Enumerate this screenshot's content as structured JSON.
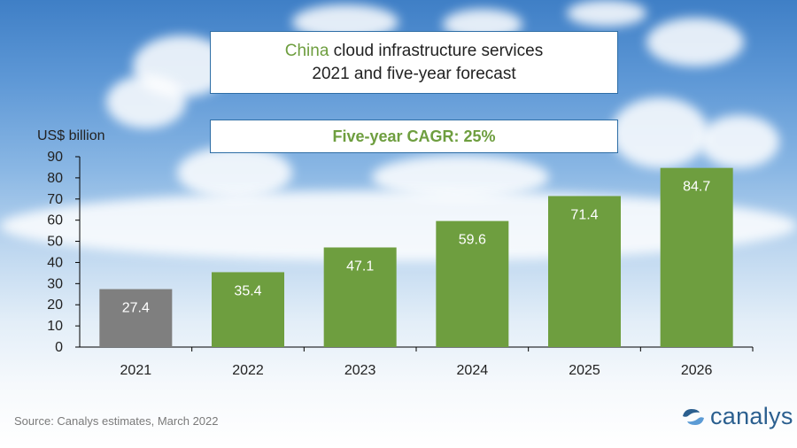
{
  "title": {
    "accent": "China",
    "line1_rest": " cloud infrastructure services",
    "line2": "2021 and five-year forecast"
  },
  "cagr_label": "Five-year CAGR: 25%",
  "source": "Source:  Canalys estimates, March 2022",
  "logo_text": "canalys",
  "colors": {
    "actual": "#7f7f7f",
    "forecast": "#6e9e3f",
    "accent": "#6e9e3f",
    "logo": "#2b5f8f",
    "box_border": "#2e6ea6"
  },
  "chart_data": {
    "type": "bar",
    "categories": [
      "2021",
      "2022",
      "2023",
      "2024",
      "2025",
      "2026"
    ],
    "values": [
      27.4,
      35.4,
      47.1,
      59.6,
      71.4,
      84.7
    ],
    "data_labels": [
      "27.4",
      "35.4",
      "47.1",
      "59.6",
      "71.4",
      "84.7"
    ],
    "bar_kind": [
      "actual",
      "forecast",
      "forecast",
      "forecast",
      "forecast",
      "forecast"
    ],
    "ylabel": "US$ billion",
    "xlabel": "",
    "ylim": [
      0,
      90
    ],
    "yticks": [
      0,
      10,
      20,
      30,
      40,
      50,
      60,
      70,
      80,
      90
    ],
    "grid": false,
    "legend": "none"
  }
}
